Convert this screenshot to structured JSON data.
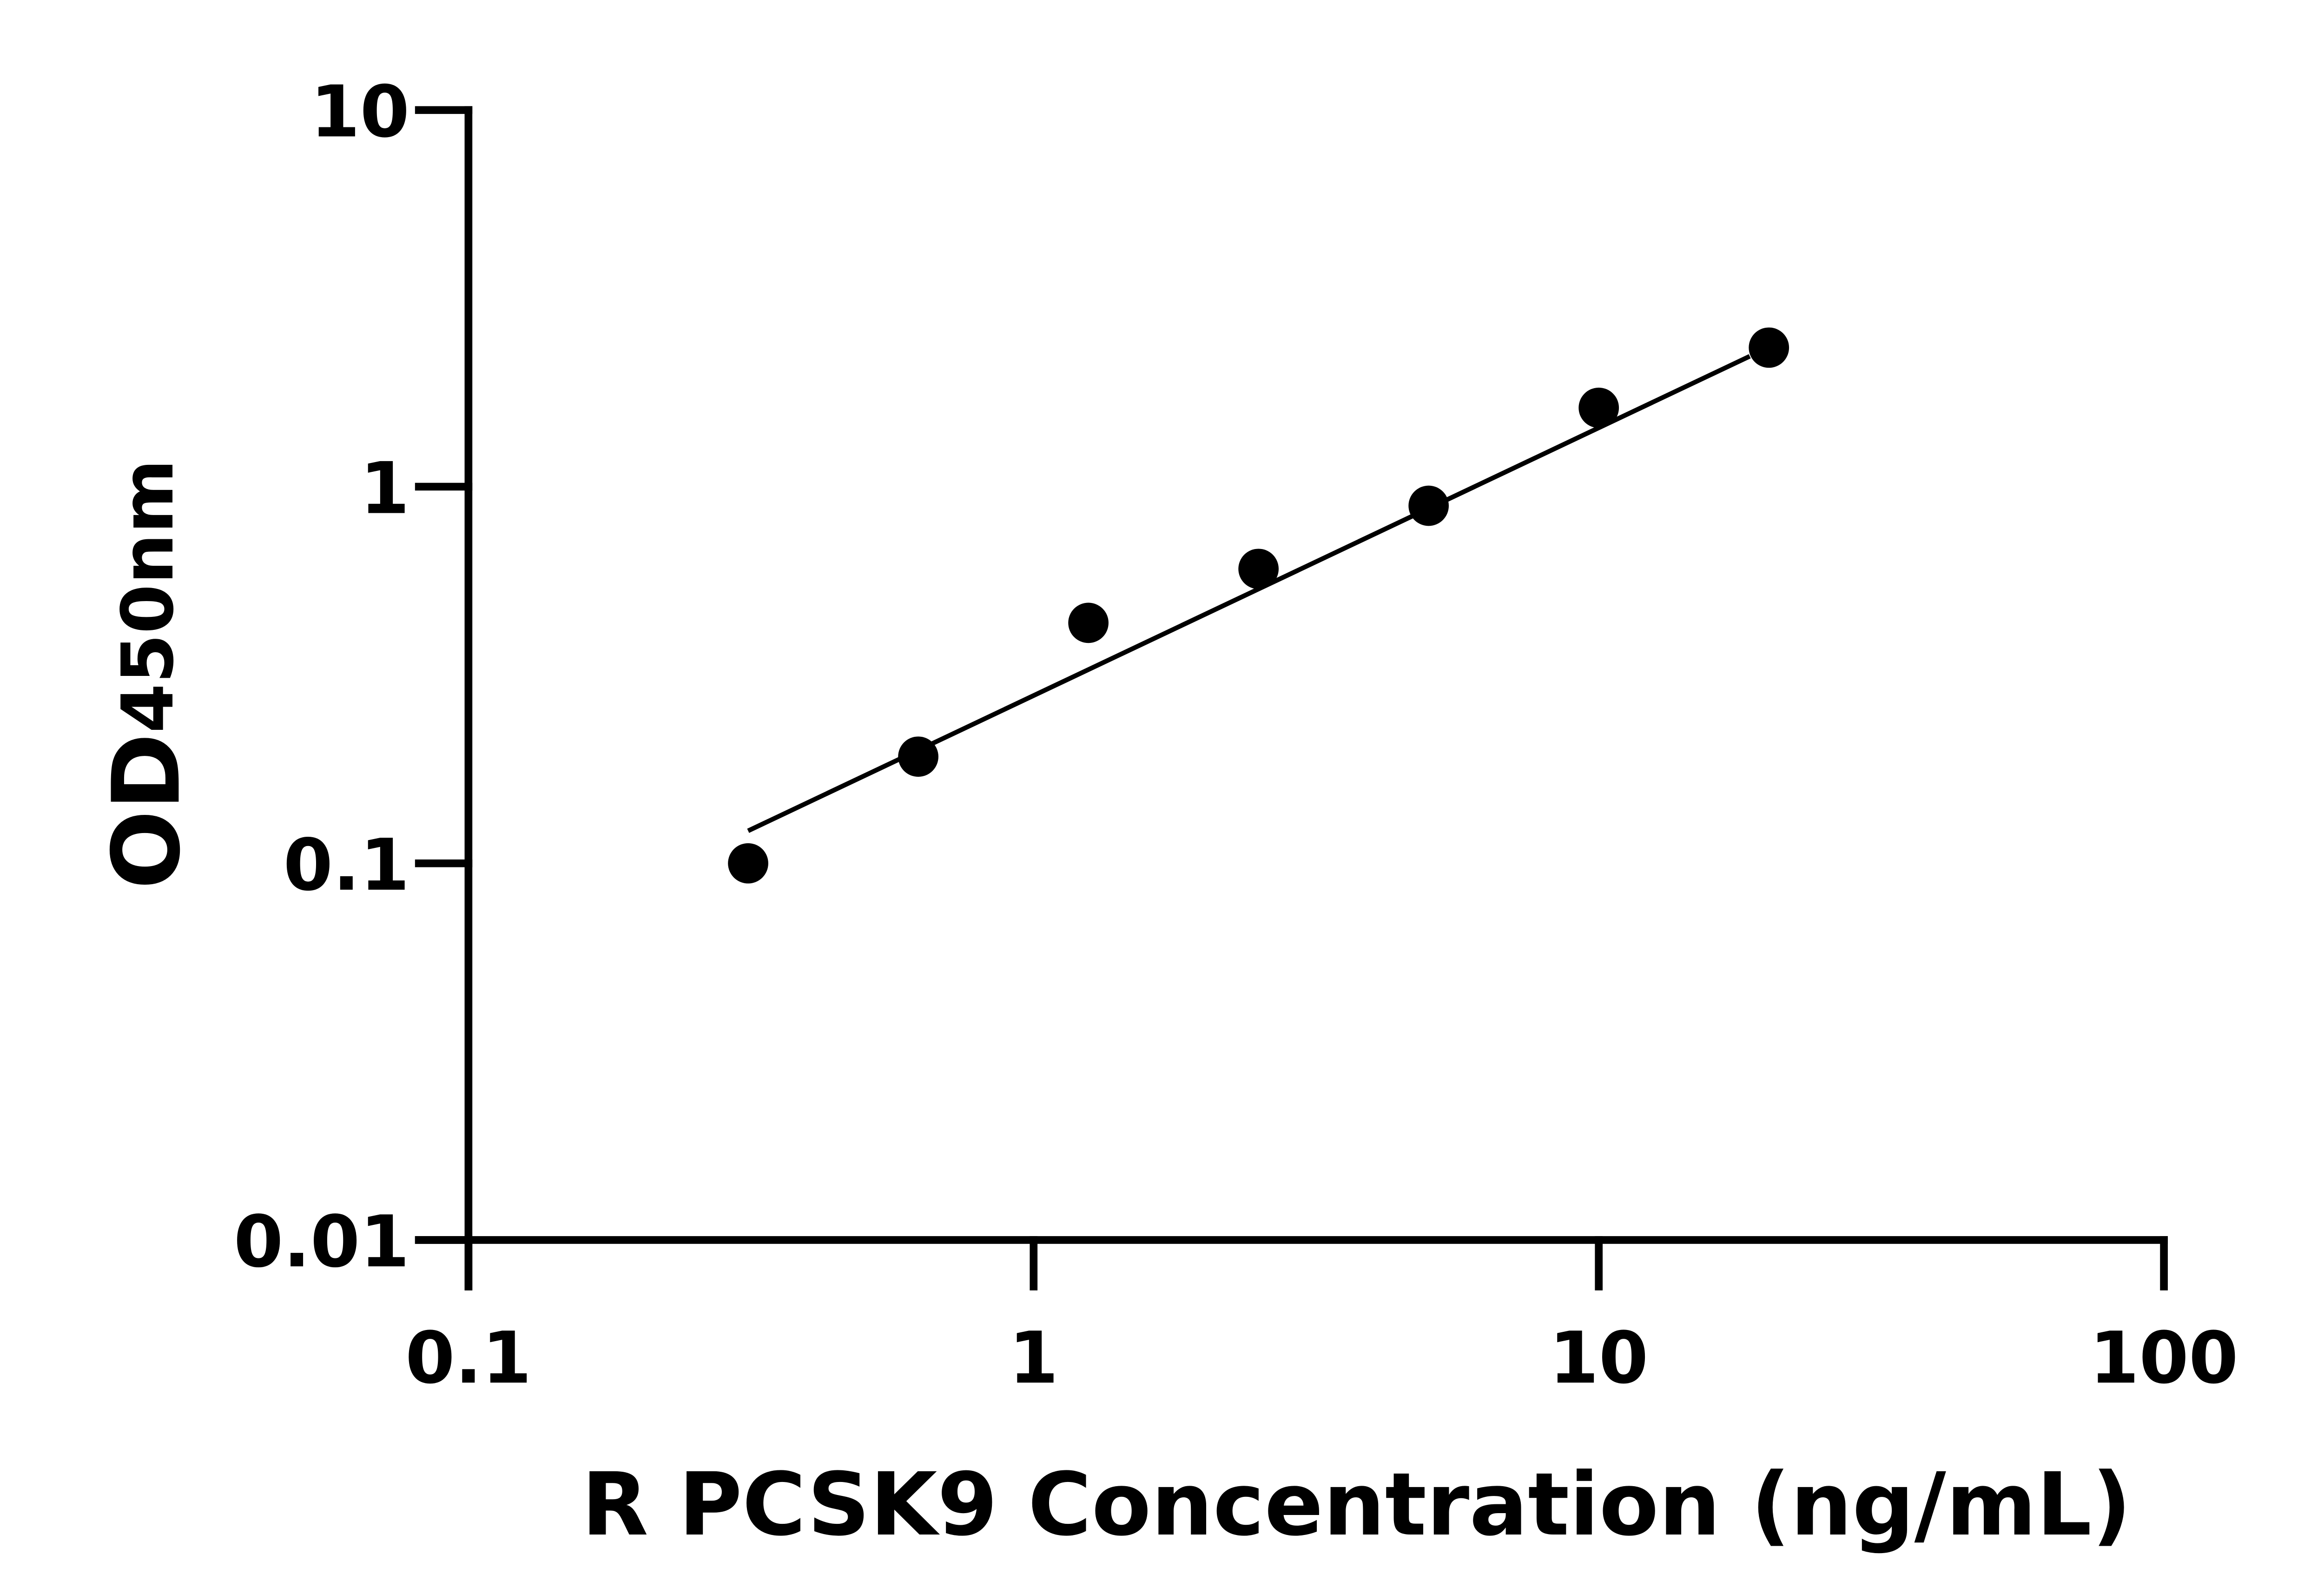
{
  "chart_data": {
    "type": "scatter",
    "x_label": "R PCSK9 Concentration (ng/mL)",
    "y_label": "OD",
    "y_label_subscript": "450nm",
    "x": [
      0.3125,
      0.625,
      1.25,
      2.5,
      5,
      10,
      20
    ],
    "values": [
      0.1,
      0.192,
      0.435,
      0.605,
      0.89,
      1.62,
      2.34
    ],
    "color": "#000000",
    "fit": {
      "x": [
        0.3125,
        18.5
      ],
      "y": [
        0.122,
        2.22
      ]
    },
    "x_log": true,
    "y_log": true,
    "xlim": [
      0.1,
      100
    ],
    "ylim": [
      0.01,
      10
    ],
    "xticks": [
      0.1,
      1,
      10,
      100
    ],
    "yticks": [
      0.01,
      0.1,
      1,
      10
    ]
  }
}
